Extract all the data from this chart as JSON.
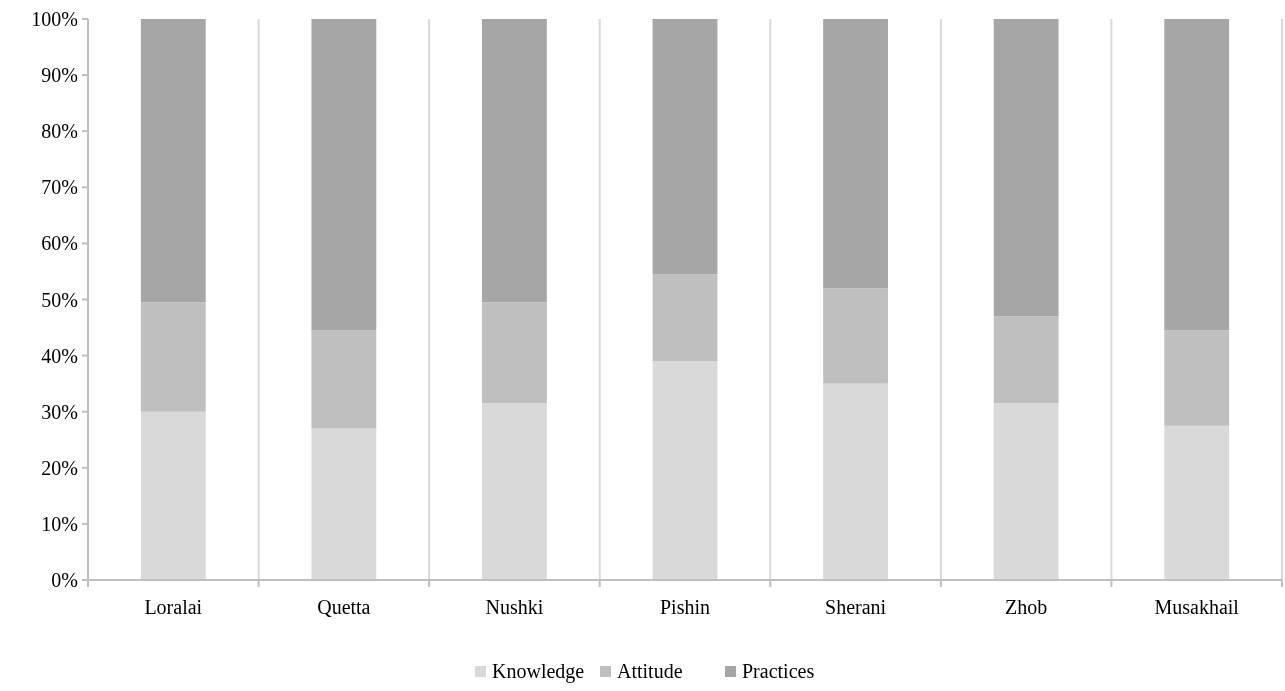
{
  "chart_data": {
    "type": "bar",
    "stacked": true,
    "categories": [
      "Loralai",
      "Quetta",
      "Nushki",
      "Pishin",
      "Sherani",
      "Zhob",
      "Musakhail"
    ],
    "series": [
      {
        "name": "Knowledge",
        "color": "#d9d9d9",
        "values": [
          30,
          27,
          31.5,
          39,
          35,
          31.5,
          27.5
        ]
      },
      {
        "name": "Attitude",
        "color": "#bfbfbf",
        "values": [
          19.5,
          17.5,
          18,
          15.5,
          17,
          15.5,
          17
        ]
      },
      {
        "name": "Practices",
        "color": "#a6a6a6",
        "values": [
          50.5,
          55.5,
          50.5,
          45.5,
          48,
          53,
          55.5
        ]
      }
    ],
    "ylim": [
      0,
      100
    ],
    "yticks": [
      {
        "value": 0,
        "label": "0%"
      },
      {
        "value": 10,
        "label": "10%"
      },
      {
        "value": 20,
        "label": "20%"
      },
      {
        "value": 30,
        "label": "30%"
      },
      {
        "value": 40,
        "label": "40%"
      },
      {
        "value": 50,
        "label": "50%"
      },
      {
        "value": 60,
        "label": "60%"
      },
      {
        "value": 70,
        "label": "70%"
      },
      {
        "value": 80,
        "label": "80%"
      },
      {
        "value": 90,
        "label": "90%"
      },
      {
        "value": 100,
        "label": "100%"
      }
    ],
    "grid": "x",
    "legend": "bottom"
  }
}
